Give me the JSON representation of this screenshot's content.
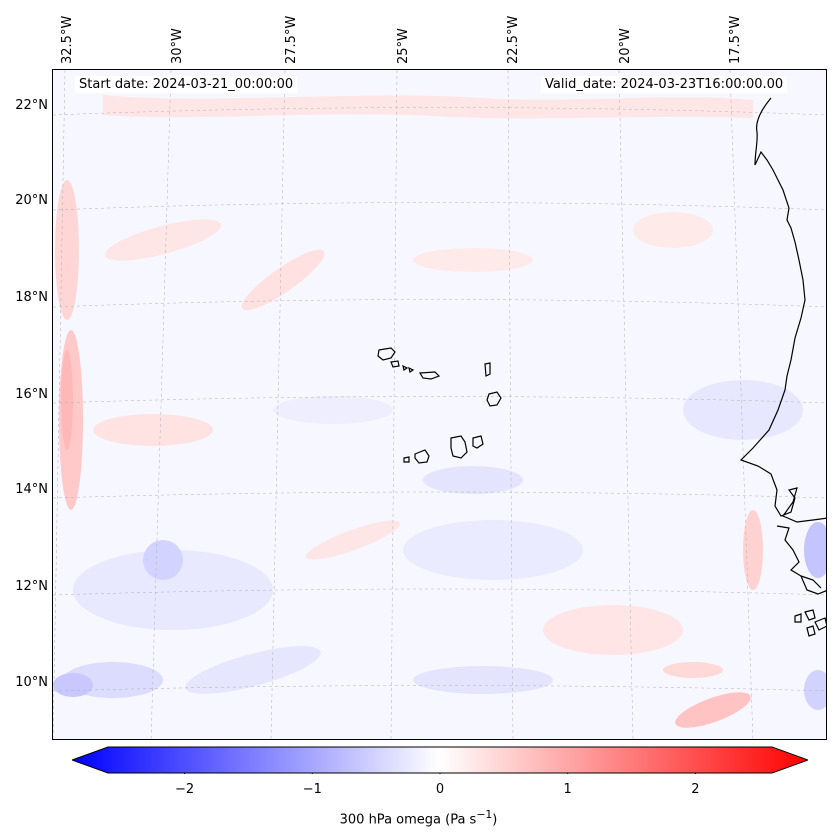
{
  "map": {
    "region": "Cabo Verde and West African coast",
    "start_date": "Start date: 2024-03-21_00:00:00",
    "valid_date": "Valid_date: 2024-03-23T16:00:00.00",
    "longitude_labels": [
      "32.5°W",
      "30°W",
      "27.5°W",
      "25°W",
      "22.5°W",
      "20°W",
      "17.5°W"
    ],
    "latitude_labels": [
      "22°N",
      "20°N",
      "18°N",
      "16°N",
      "14°N",
      "12°N",
      "10°N"
    ],
    "field_colors": {
      "background": "#f7f7ff",
      "weak_positive": "#ffe6e6",
      "moderate_positive": "#ffc4c4",
      "weak_negative": "#e6e6ff",
      "moderate_negative": "#c8c8ff",
      "coastline": "#000000"
    }
  },
  "colorbar": {
    "title_html": "300 hPa omega (Pa s<sup>−1</sup>)",
    "min": -2.6,
    "max": 2.6,
    "tick_values": [
      -2,
      -1,
      0,
      1,
      2
    ],
    "tick_labels": [
      "−2",
      "−1",
      "0",
      "1",
      "2"
    ],
    "color_low": "#0000ff",
    "color_mid": "#ffffff",
    "color_high": "#ff0000"
  }
}
